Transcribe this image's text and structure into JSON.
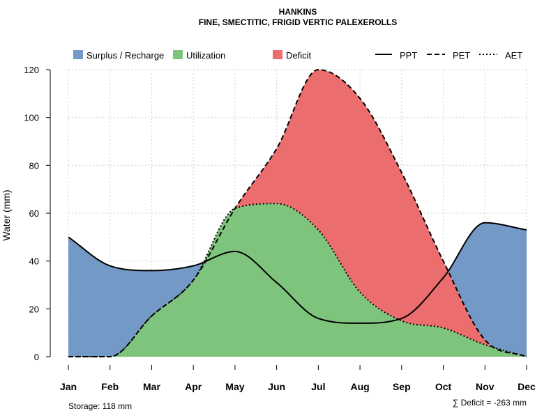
{
  "chart_data": {
    "type": "area",
    "title_line1": "HANKINS",
    "title_line2": "FINE, SMECTITIC, FRIGID VERTIC PALEXEROLLS",
    "ylabel": "Water (mm)",
    "xlabel": "",
    "ylim": [
      0,
      120
    ],
    "yticks": [
      0,
      20,
      40,
      60,
      80,
      100,
      120
    ],
    "categories": [
      "Jan",
      "Feb",
      "Mar",
      "Apr",
      "May",
      "Jun",
      "Jul",
      "Aug",
      "Sep",
      "Oct",
      "Nov",
      "Dec"
    ],
    "grid": true,
    "series": [
      {
        "name": "PPT",
        "line": "solid",
        "values": [
          50,
          38,
          36,
          38,
          44,
          31,
          16,
          14,
          16,
          33,
          56,
          53
        ]
      },
      {
        "name": "PET",
        "line": "dashed",
        "values": [
          0,
          0,
          17,
          32,
          62,
          87,
          120,
          108,
          77,
          40,
          7,
          0
        ]
      },
      {
        "name": "AET",
        "line": "dotted",
        "values": [
          0,
          0,
          17,
          32,
          62,
          64,
          53,
          27,
          15,
          12,
          5,
          0
        ]
      }
    ],
    "fill_legend": [
      {
        "name": "Surplus / Recharge",
        "color": "#7399C6"
      },
      {
        "name": "Utilization",
        "color": "#7FC47C"
      },
      {
        "name": "Deficit",
        "color": "#EB6D6D"
      }
    ],
    "legend_position": "top",
    "storage_label": "Storage: 118 mm",
    "deficit_label": "∑ Deficit = -263 mm"
  }
}
